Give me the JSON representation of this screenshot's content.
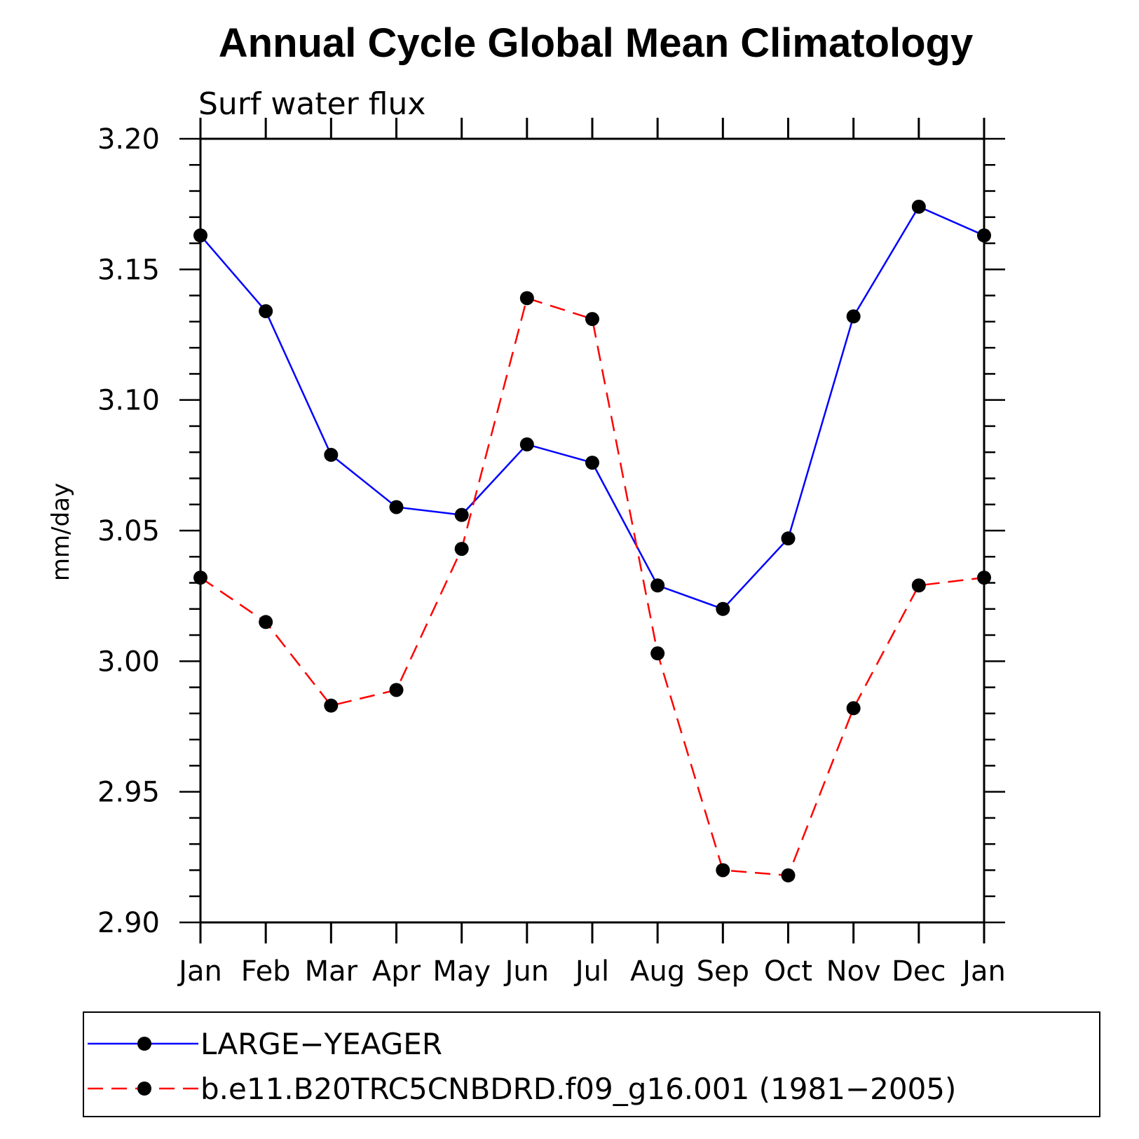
{
  "chart_data": {
    "type": "line",
    "title": "Annual Cycle Global Mean Climatology",
    "subtitle": "Surf water flux",
    "ylabel": "mm/day",
    "xlabel": "",
    "categories": [
      "Jan",
      "Feb",
      "Mar",
      "Apr",
      "May",
      "Jun",
      "Jul",
      "Aug",
      "Sep",
      "Oct",
      "Nov",
      "Dec",
      "Jan"
    ],
    "ylim": [
      2.9,
      3.2
    ],
    "yticks": [
      "2.90",
      "2.95",
      "3.00",
      "3.05",
      "3.10",
      "3.15",
      "3.20"
    ],
    "ytick_values": [
      2.9,
      2.95,
      3.0,
      3.05,
      3.1,
      3.15,
      3.2
    ],
    "grid": false,
    "legend_position": "bottom",
    "series": [
      {
        "name": "LARGE−YEAGER",
        "color": "#0000ff",
        "style": "solid",
        "marker": "filled-circle",
        "values": [
          3.163,
          3.134,
          3.079,
          3.059,
          3.056,
          3.083,
          3.076,
          3.029,
          3.02,
          3.047,
          3.132,
          3.174,
          3.163
        ]
      },
      {
        "name": "b.e11.B20TRC5CNBDRD.f09_g16.001 (1981−2005)",
        "color": "#ff0000",
        "style": "dashed",
        "marker": "filled-circle",
        "values": [
          3.032,
          3.015,
          2.983,
          2.989,
          3.043,
          3.139,
          3.131,
          3.003,
          2.92,
          2.918,
          2.982,
          3.029,
          3.032
        ]
      }
    ]
  }
}
